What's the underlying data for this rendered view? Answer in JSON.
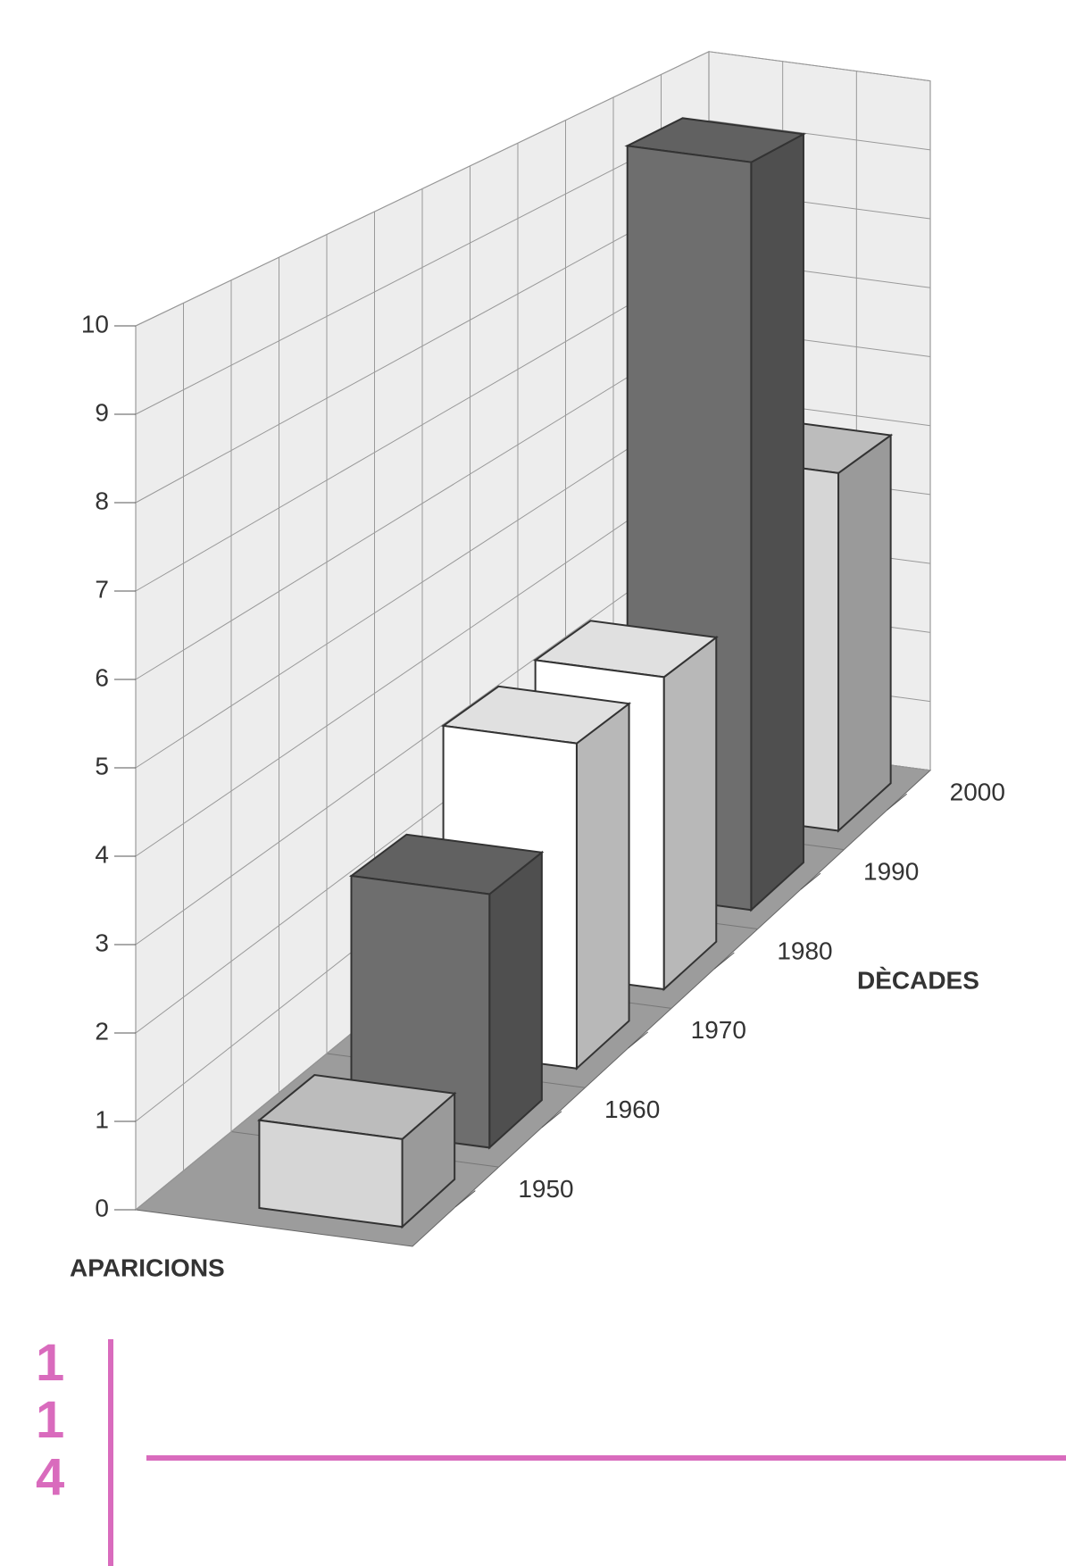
{
  "chart_data": {
    "type": "bar3d",
    "y_label": "APARICIONS",
    "x_label": "DÈCADES",
    "categories": [
      "1950",
      "1960",
      "1970",
      "1980",
      "1990",
      "2000"
    ],
    "values": [
      1,
      3,
      4,
      4,
      10,
      5
    ],
    "colors": [
      "#d6d6d6",
      "#6e6e6e",
      "#ffffff",
      "#ffffff",
      "#6e6e6e",
      "#d6d6d6"
    ],
    "ylim": [
      0,
      10
    ],
    "yticks": [
      0,
      1,
      2,
      3,
      4,
      5,
      6,
      7,
      8,
      9,
      10
    ],
    "grid": true
  },
  "page_number": "114"
}
